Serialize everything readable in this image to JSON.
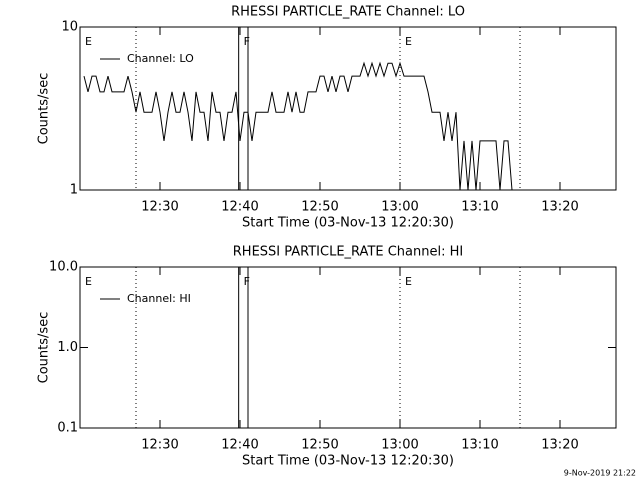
{
  "chart_data": [
    {
      "type": "line",
      "title": "RHESSI PARTICLE_RATE Channel: LO",
      "xlabel": "Start Time (03-Nov-13 12:20:30)",
      "ylabel": "Counts/sec",
      "log_y": true,
      "ylim": [
        1,
        10
      ],
      "yticks": [
        1,
        10
      ],
      "xlim": [
        "12:20",
        "13:27"
      ],
      "xticks": [
        "12:30",
        "12:40",
        "12:50",
        "13:00",
        "13:10",
        "13:20"
      ],
      "dotted_lines": [
        "12:27",
        "13:00",
        "13:15"
      ],
      "solid_lines": [
        "12:39:50",
        "12:41"
      ],
      "flags": [
        {
          "x": "12:20:30",
          "label": "E"
        },
        {
          "x": "12:40:20",
          "label": "F"
        },
        {
          "x": "13:00:30",
          "label": "E"
        }
      ],
      "series": [
        {
          "name": "Channel: LO",
          "color": "#000000",
          "x": [
            "12:20:30",
            "12:21:00",
            "12:21:30",
            "12:22:00",
            "12:22:30",
            "12:23:00",
            "12:23:30",
            "12:24:00",
            "12:24:30",
            "12:25:00",
            "12:25:30",
            "12:26:00",
            "12:26:30",
            "12:27:00",
            "12:27:30",
            "12:28:00",
            "12:28:30",
            "12:29:00",
            "12:29:30",
            "12:30:00",
            "12:30:30",
            "12:31:00",
            "12:31:30",
            "12:32:00",
            "12:32:30",
            "12:33:00",
            "12:33:30",
            "12:34:00",
            "12:34:30",
            "12:35:00",
            "12:35:30",
            "12:36:00",
            "12:36:30",
            "12:37:00",
            "12:37:30",
            "12:38:00",
            "12:38:30",
            "12:39:00",
            "12:39:30",
            "12:40:00",
            "12:40:30",
            "12:41:00",
            "12:41:30",
            "12:42:00",
            "12:42:30",
            "12:43:00",
            "12:43:30",
            "12:44:00",
            "12:44:30",
            "12:45:00",
            "12:45:30",
            "12:46:00",
            "12:46:30",
            "12:47:00",
            "12:47:30",
            "12:48:00",
            "12:48:30",
            "12:49:00",
            "12:49:30",
            "12:50:00",
            "12:50:30",
            "12:51:00",
            "12:51:30",
            "12:52:00",
            "12:52:30",
            "12:53:00",
            "12:53:30",
            "12:54:00",
            "12:54:30",
            "12:55:00",
            "12:55:30",
            "12:56:00",
            "12:56:30",
            "12:57:00",
            "12:57:30",
            "12:58:00",
            "12:58:30",
            "12:59:00",
            "12:59:30",
            "13:00:00",
            "13:00:30",
            "13:01:00",
            "13:01:30",
            "13:02:00",
            "13:02:30",
            "13:03:00",
            "13:03:30",
            "13:04:00",
            "13:04:30",
            "13:05:00",
            "13:05:30",
            "13:06:00",
            "13:06:30",
            "13:07:00",
            "13:07:30",
            "13:08:00",
            "13:08:30",
            "13:09:00",
            "13:09:30",
            "13:10:00",
            "13:10:30",
            "13:11:00",
            "13:11:30",
            "13:12:00",
            "13:12:30",
            "13:13:00",
            "13:13:30",
            "13:14:00"
          ],
          "values": [
            5,
            4,
            5,
            5,
            4,
            4,
            5,
            4,
            4,
            4,
            4,
            5,
            4,
            3,
            4,
            3,
            3,
            3,
            4,
            3,
            2,
            3,
            4,
            3,
            3,
            4,
            3,
            2,
            4,
            3,
            3,
            2,
            4,
            3,
            3,
            2,
            3,
            3,
            4,
            2,
            3,
            3,
            2,
            3,
            3,
            3,
            3,
            4,
            3,
            3,
            3,
            4,
            3,
            4,
            3,
            3,
            4,
            4,
            4,
            5,
            5,
            4,
            5,
            4,
            5,
            5,
            4,
            5,
            5,
            5,
            6,
            5,
            6,
            5,
            6,
            5,
            6,
            6,
            5,
            6,
            5,
            5,
            5,
            5,
            5,
            5,
            4,
            3,
            3,
            3,
            2,
            3,
            2,
            3,
            1,
            2,
            1,
            2,
            1,
            2,
            2,
            2,
            2,
            2,
            1,
            2,
            2,
            1
          ]
        }
      ]
    },
    {
      "type": "line",
      "title": "RHESSI PARTICLE_RATE Channel: HI",
      "xlabel": "Start Time (03-Nov-13 12:20:30)",
      "ylabel": "Counts/sec",
      "log_y": true,
      "ylim": [
        0.1,
        10
      ],
      "yticks": [
        0.1,
        {
          "value": 1,
          "label": "1.0"
        },
        {
          "value": 10,
          "label": "10.0"
        }
      ],
      "xlim": [
        "12:20",
        "13:27"
      ],
      "xticks": [
        "12:30",
        "12:40",
        "12:50",
        "13:00",
        "13:10",
        "13:20"
      ],
      "dotted_lines": [
        "12:27",
        "13:00",
        "13:15"
      ],
      "solid_lines": [
        "12:39:50",
        "12:41"
      ],
      "flags": [
        {
          "x": "12:20:30",
          "label": "E"
        },
        {
          "x": "12:40:20",
          "label": "F"
        },
        {
          "x": "13:00:30",
          "label": "E"
        }
      ],
      "series": [
        {
          "name": "Channel: HI",
          "color": "#000000",
          "x": [],
          "values": []
        }
      ]
    }
  ],
  "footer": {
    "timestamp": "9-Nov-2019 21:22"
  }
}
